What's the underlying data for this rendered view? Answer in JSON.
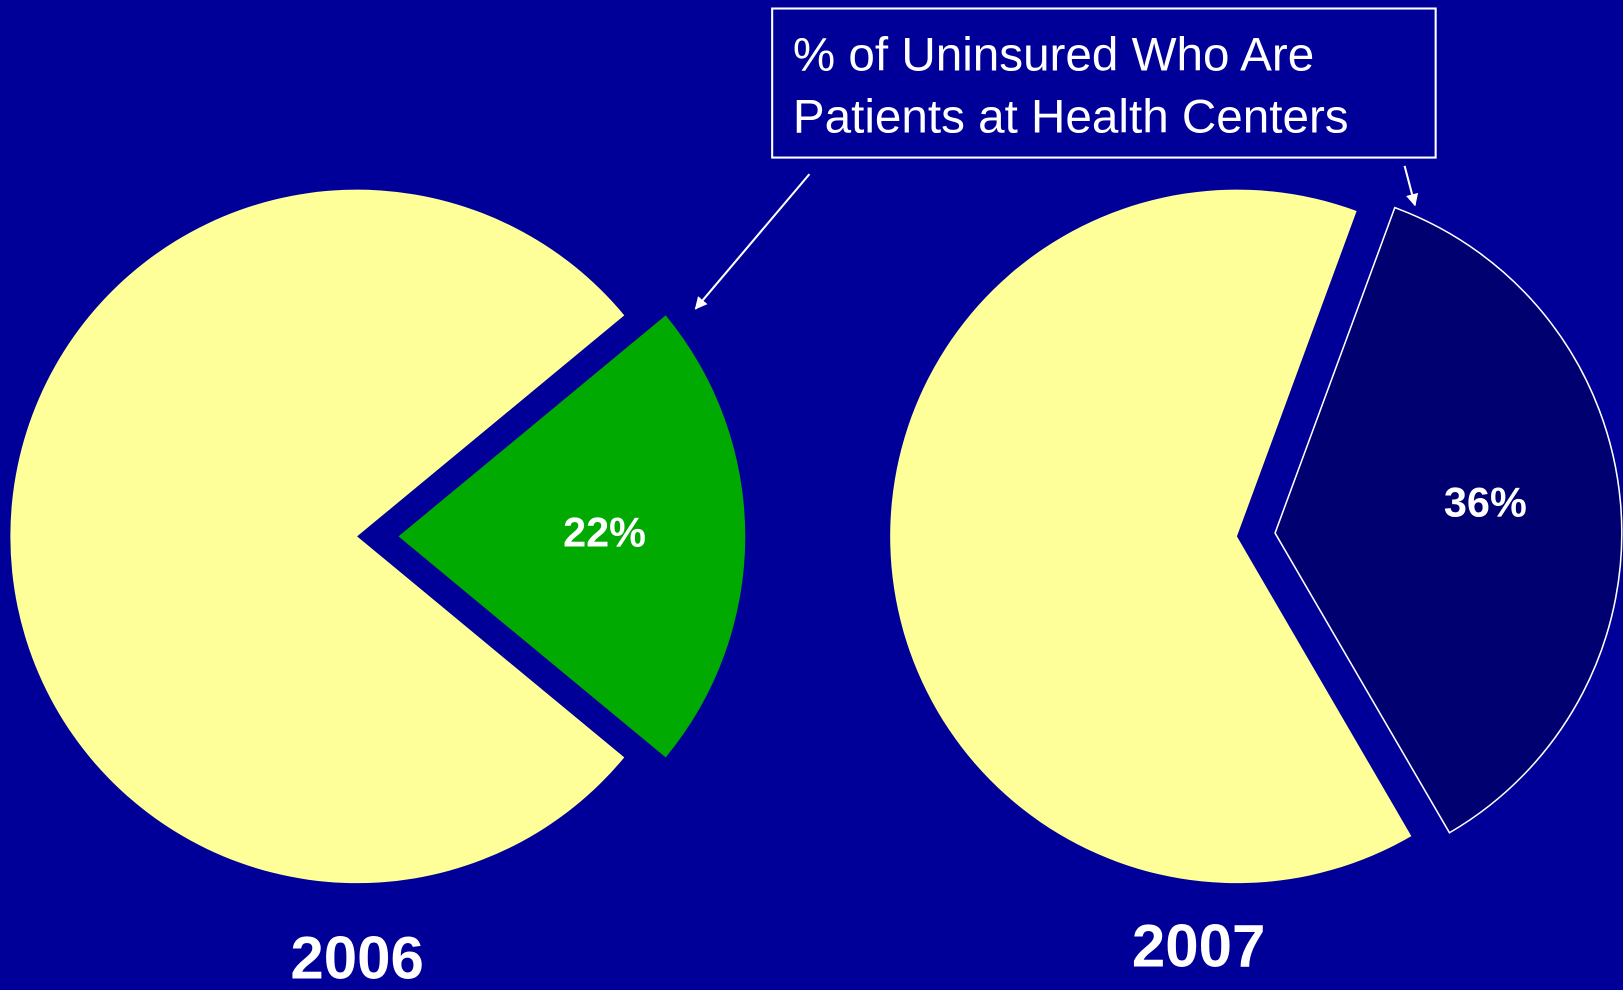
{
  "annotation": [
    "% of Uninsured Who Are",
    "Patients at Health Centers"
  ],
  "chart_data": [
    {
      "type": "pie",
      "title": "2006",
      "values": [
        22,
        78
      ],
      "value_labels": [
        "22%",
        null
      ],
      "colors": [
        "#00aa00",
        "#ffff99"
      ]
    },
    {
      "type": "pie",
      "title": "2007",
      "values": [
        36,
        64
      ],
      "value_labels": [
        "36%",
        null
      ],
      "colors": [
        "#000070",
        "#ffff99"
      ]
    }
  ]
}
